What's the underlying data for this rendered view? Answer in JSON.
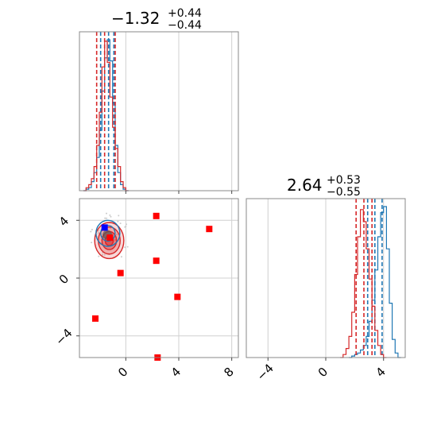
{
  "chart_data": [
    {
      "type": "histogram",
      "panel": "marginal-param-1",
      "title": {
        "value": "−1.32",
        "plus": "+0.44",
        "minus": "−0.44"
      },
      "xlim": [
        -3.5,
        8.5
      ],
      "grid": true,
      "series": [
        {
          "color": "#1f77b4",
          "quantiles": [
            -1.9,
            -1.3,
            -0.9
          ],
          "x": [
            -3.2,
            -3.0,
            -2.8,
            -2.6,
            -2.4,
            -2.2,
            -2.0,
            -1.8,
            -1.6,
            -1.4,
            -1.2,
            -1.0,
            -0.8,
            -0.6,
            -0.4,
            -0.2,
            0.0
          ],
          "density": [
            0.0,
            0.01,
            0.02,
            0.06,
            0.12,
            0.22,
            0.4,
            0.66,
            0.88,
            1.0,
            0.86,
            0.58,
            0.3,
            0.12,
            0.04,
            0.01,
            0.0
          ]
        },
        {
          "color": "#d62728",
          "quantiles": [
            -2.2,
            -1.6,
            -0.8
          ],
          "x": [
            -3.2,
            -3.0,
            -2.8,
            -2.6,
            -2.4,
            -2.2,
            -2.0,
            -1.8,
            -1.6,
            -1.4,
            -1.2,
            -1.0,
            -0.8,
            -0.6,
            -0.4,
            -0.2,
            0.0
          ],
          "density": [
            0.0,
            0.02,
            0.04,
            0.08,
            0.16,
            0.3,
            0.52,
            0.82,
            0.99,
            0.85,
            0.62,
            0.42,
            0.28,
            0.16,
            0.06,
            0.02,
            0.0
          ]
        }
      ]
    },
    {
      "type": "scatter",
      "panel": "joint",
      "xlim": [
        -3.5,
        8.5
      ],
      "ylim": [
        -5.5,
        5.5
      ],
      "xticks": [
        "0",
        "4",
        "8"
      ],
      "yticks": [
        "4",
        "0",
        "−4"
      ],
      "grid": true,
      "contours": [
        {
          "color": "#d62728",
          "cx": -1.25,
          "cy": 2.6,
          "rx": 1.1,
          "ry": 1.25
        },
        {
          "color": "#1f77b4",
          "cx": -1.35,
          "cy": 3.1,
          "rx": 0.9,
          "ry": 0.9
        }
      ],
      "markers": [
        {
          "color": "#ff0000",
          "x": 2.3,
          "y": 4.3
        },
        {
          "color": "#ff0000",
          "x": 6.3,
          "y": 3.4
        },
        {
          "color": "#ff0000",
          "x": 2.3,
          "y": 1.2
        },
        {
          "color": "#ff0000",
          "x": -0.4,
          "y": 0.35
        },
        {
          "color": "#ff0000",
          "x": 3.9,
          "y": -1.3
        },
        {
          "color": "#ff0000",
          "x": -2.3,
          "y": -2.8
        },
        {
          "color": "#ff0000",
          "x": 2.4,
          "y": -5.5
        },
        {
          "color": "#ff0000",
          "x": -1.2,
          "y": 2.8
        },
        {
          "color": "#0000ff",
          "x": -1.6,
          "y": 3.5
        }
      ]
    },
    {
      "type": "histogram",
      "panel": "marginal-param-2",
      "title": {
        "value": "2.64",
        "plus": "+0.53",
        "minus": "−0.55"
      },
      "xlim": [
        -5.5,
        5.5
      ],
      "xticks": [
        "−4",
        "0",
        "4"
      ],
      "grid": true,
      "series": [
        {
          "color": "#1f77b4",
          "quantiles": [
            2.9,
            3.4,
            3.9
          ],
          "x": [
            1.6,
            1.8,
            2.0,
            2.2,
            2.4,
            2.6,
            2.8,
            3.0,
            3.2,
            3.4,
            3.6,
            3.8,
            4.0,
            4.2,
            4.4,
            4.6,
            4.8,
            5.0
          ],
          "density": [
            0.0,
            0.01,
            0.02,
            0.03,
            0.05,
            0.08,
            0.14,
            0.24,
            0.38,
            0.58,
            0.8,
            0.96,
            1.0,
            0.72,
            0.36,
            0.12,
            0.03,
            0.0
          ]
        },
        {
          "color": "#d62728",
          "quantiles": [
            2.1,
            2.64,
            3.2
          ],
          "x": [
            1.0,
            1.2,
            1.4,
            1.6,
            1.8,
            2.0,
            2.2,
            2.4,
            2.6,
            2.8,
            3.0,
            3.2,
            3.4,
            3.6,
            3.8,
            4.0
          ],
          "density": [
            0.0,
            0.02,
            0.06,
            0.14,
            0.3,
            0.55,
            0.8,
            0.98,
            0.9,
            0.72,
            0.52,
            0.34,
            0.18,
            0.08,
            0.02,
            0.0
          ]
        }
      ]
    }
  ]
}
